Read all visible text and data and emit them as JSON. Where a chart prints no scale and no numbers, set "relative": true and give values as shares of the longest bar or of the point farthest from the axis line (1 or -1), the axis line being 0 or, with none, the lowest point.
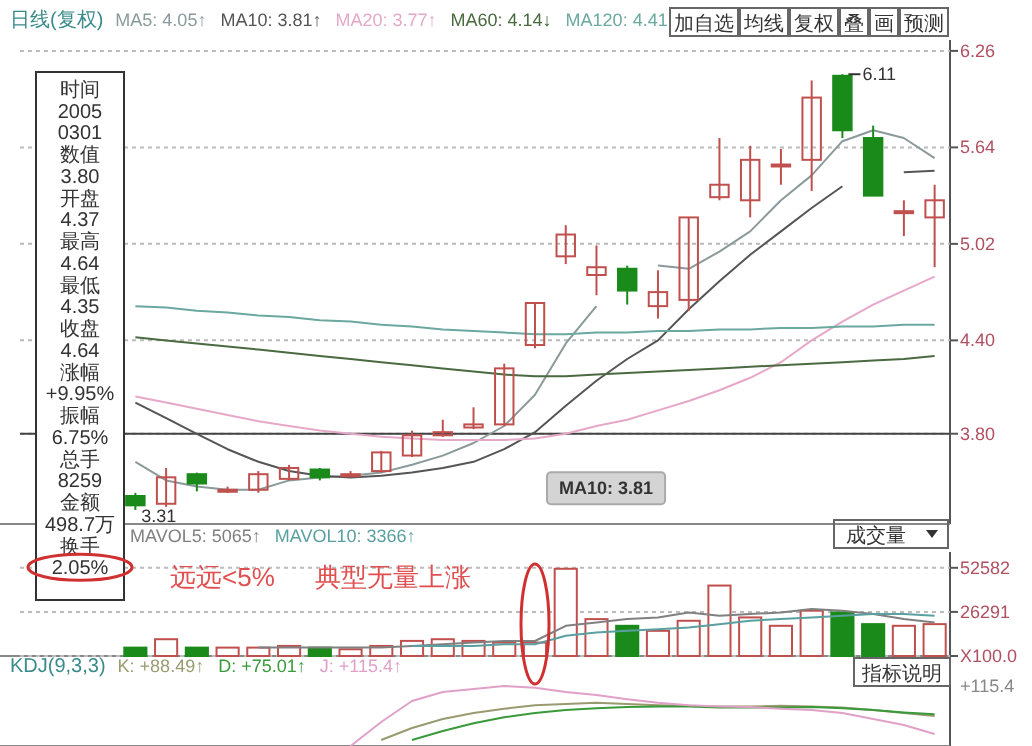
{
  "chart_data": [
    {
      "type": "candlestick",
      "title": "日线(复权)",
      "legend": "top left",
      "grid": "y",
      "categories": [
        null,
        null,
        null,
        null,
        null,
        null,
        null,
        null,
        null,
        null,
        null,
        null,
        null,
        null,
        null,
        null,
        null,
        null,
        null,
        null,
        null,
        null,
        null,
        null,
        null,
        null,
        null
      ],
      "ohlc": [
        [
          3.4,
          3.42,
          3.31,
          3.34
        ],
        [
          3.35,
          3.58,
          3.33,
          3.52
        ],
        [
          3.54,
          3.55,
          3.43,
          3.48
        ],
        [
          3.44,
          3.46,
          3.42,
          3.44
        ],
        [
          3.44,
          3.56,
          3.42,
          3.54
        ],
        [
          3.51,
          3.6,
          3.5,
          3.58
        ],
        [
          3.57,
          3.58,
          3.5,
          3.52
        ],
        [
          3.54,
          3.56,
          3.52,
          3.54
        ],
        [
          3.56,
          3.69,
          3.55,
          3.68
        ],
        [
          3.66,
          3.82,
          3.65,
          3.79
        ],
        [
          3.79,
          3.89,
          3.78,
          3.81
        ],
        [
          3.84,
          3.97,
          3.83,
          3.86
        ],
        [
          3.86,
          4.25,
          3.85,
          4.22
        ],
        [
          4.37,
          4.64,
          4.35,
          4.64
        ],
        [
          4.94,
          5.14,
          4.89,
          5.08
        ],
        [
          4.82,
          5.01,
          4.69,
          4.87
        ],
        [
          4.86,
          4.88,
          4.63,
          4.72
        ],
        [
          4.62,
          4.85,
          4.54,
          4.71
        ],
        [
          4.66,
          5.19,
          4.59,
          5.19
        ],
        [
          5.32,
          5.7,
          5.3,
          5.4
        ],
        [
          5.3,
          5.65,
          5.19,
          5.56
        ],
        [
          5.53,
          5.63,
          5.4,
          5.53
        ],
        [
          5.56,
          6.07,
          5.36,
          5.96
        ],
        [
          6.1,
          6.11,
          5.7,
          5.75
        ],
        [
          5.7,
          5.78,
          5.33,
          5.33
        ],
        [
          5.23,
          5.3,
          5.07,
          5.23
        ],
        [
          5.19,
          5.4,
          4.87,
          5.3
        ]
      ],
      "colors": [
        "#1a8a1a",
        "#c0504d",
        "#1a8a1a",
        "#c0504d",
        "#c0504d",
        "#c0504d",
        "#1a8a1a",
        "#c0504d",
        "#c0504d",
        "#c0504d",
        "#c0504d",
        "#c0504d",
        "#c0504d",
        "#c0504d",
        "#c0504d",
        "#c0504d",
        "#1a8a1a",
        "#c0504d",
        "#c0504d",
        "#c0504d",
        "#c0504d",
        "#c0504d",
        "#c0504d",
        "#1a8a1a",
        "#1a8a1a",
        "#c0504d",
        "#c0504d"
      ],
      "series": [
        {
          "type": "line",
          "name": "MA5: 4.05↑",
          "color": "#8a9a9a",
          "values": [
            3.62,
            3.5,
            3.46,
            3.44,
            3.44,
            3.5,
            3.52,
            3.53,
            3.55,
            3.6,
            3.66,
            3.74,
            3.85,
            4.05,
            4.38,
            4.62,
            null,
            4.88,
            4.86,
            4.97,
            5.1,
            5.3,
            5.46,
            5.68,
            5.75,
            5.7,
            5.57
          ]
        },
        {
          "type": "line",
          "name": "MA10: 3.81↑",
          "color": "#555555",
          "values": [
            4.0,
            3.9,
            3.8,
            3.7,
            3.62,
            3.56,
            3.53,
            3.52,
            3.53,
            3.55,
            3.58,
            3.62,
            3.7,
            3.81,
            3.98,
            4.14,
            4.28,
            4.4,
            4.6,
            4.78,
            4.95,
            5.1,
            5.25,
            5.39,
            null,
            5.48,
            5.49
          ]
        },
        {
          "type": "line",
          "name": "MA20: 3.77↑",
          "color": "#e6a8c8",
          "values": [
            4.04,
            4.0,
            3.96,
            3.92,
            3.88,
            3.85,
            3.82,
            3.8,
            3.78,
            3.77,
            3.76,
            3.76,
            3.76,
            3.77,
            3.8,
            3.85,
            3.89,
            3.95,
            4.01,
            4.08,
            4.16,
            4.26,
            4.4,
            4.52,
            4.63,
            4.72,
            4.81
          ]
        },
        {
          "type": "line",
          "name": "MA60: 4.14↓",
          "color": "#4a6a40",
          "values": [
            4.42,
            4.4,
            4.38,
            4.36,
            4.34,
            4.32,
            4.3,
            4.28,
            4.26,
            4.24,
            4.22,
            4.2,
            4.18,
            4.17,
            4.17,
            4.18,
            4.19,
            4.2,
            4.21,
            4.22,
            4.23,
            4.24,
            4.25,
            4.26,
            4.27,
            4.28,
            4.3
          ]
        },
        {
          "type": "line",
          "name": "MA120: 4.41",
          "color": "#6aa8a0",
          "values": [
            4.62,
            4.61,
            4.59,
            4.58,
            4.56,
            4.55,
            4.53,
            4.52,
            4.5,
            4.49,
            4.47,
            4.46,
            4.45,
            4.44,
            4.44,
            4.45,
            4.45,
            4.46,
            4.46,
            4.47,
            4.47,
            4.48,
            4.48,
            4.49,
            4.49,
            4.5,
            4.5
          ]
        }
      ],
      "ylim": [
        3.22,
        6.33
      ],
      "yticks": [
        {
          "value": 3.8,
          "label": "3.80"
        },
        {
          "value": 4.4,
          "label": "4.40"
        },
        5.02,
        5.64,
        6.26
      ],
      "ref_lines": [
        {
          "axis": "y",
          "value": 3.8
        }
      ],
      "annotations": [
        "加自选",
        "均线",
        "复权",
        "叠",
        "画",
        "预测",
        {
          "text": "3.31",
          "y": 3.31
        },
        {
          "text": "MA10: 3.81",
          "y": 3.81
        },
        "6.11"
      ]
    },
    {
      "type": "bar",
      "legend": "top left",
      "grid": "y",
      "categories": [
        null,
        null,
        null,
        null,
        null,
        null,
        null,
        null,
        null,
        null,
        null,
        null,
        null,
        null,
        null,
        null,
        null,
        null,
        null,
        null,
        null,
        null,
        null,
        null,
        null,
        null,
        null
      ],
      "values": [
        5000,
        10000,
        5000,
        5000,
        5000,
        6000,
        5000,
        4000,
        6000,
        9000,
        10000,
        9000,
        8000,
        8000,
        52000,
        22000,
        18000,
        15000,
        21000,
        42000,
        23000,
        18000,
        27000,
        26000,
        19000,
        18000,
        19000
      ],
      "colors": [
        "#1a8a1a",
        "#c0504d",
        "#1a8a1a",
        "#c0504d",
        "#c0504d",
        "#c0504d",
        "#1a8a1a",
        "#c0504d",
        "#c0504d",
        "#c0504d",
        "#c0504d",
        "#c0504d",
        "#c0504d",
        "#c0504d",
        "#c0504d",
        "#c0504d",
        "#1a8a1a",
        "#c0504d",
        "#c0504d",
        "#c0504d",
        "#c0504d",
        "#c0504d",
        "#c0504d",
        "#1a8a1a",
        "#1a8a1a",
        "#c0504d",
        "#c0504d"
      ],
      "series": [
        {
          "type": "line",
          "name": "MAVOL5: 5065↑",
          "color": "#808080",
          "values": [
            null,
            null,
            null,
            null,
            5000,
            5000,
            5000,
            5000,
            5000,
            6000,
            7000,
            8000,
            9000,
            9000,
            18000,
            20000,
            22000,
            23000,
            26000,
            24000,
            25000,
            26000,
            28000,
            27000,
            25000,
            22000,
            20000
          ]
        },
        {
          "type": "line",
          "name": "MAVOL10: 3366↑",
          "color": "#5aa0a0",
          "values": [
            null,
            null,
            null,
            null,
            null,
            null,
            null,
            null,
            null,
            6000,
            6000,
            6000,
            7000,
            7000,
            12000,
            14000,
            15000,
            16000,
            17000,
            19000,
            21000,
            22000,
            23000,
            24000,
            25000,
            25000,
            24000
          ]
        }
      ],
      "ylim": [
        0,
        62000
      ],
      "yticks": [
        {
          "value": 0,
          "label": "X100.0"
        },
        26291,
        52582
      ],
      "annotations": [
        "成交量",
        "远远<5%",
        "典型无量上涨"
      ]
    },
    {
      "type": "line",
      "title": "KDJ(9,3,3)",
      "legend": "top left",
      "relative": true,
      "categories": [
        null,
        null,
        null,
        null,
        null,
        null,
        null,
        null,
        null,
        null,
        null,
        null,
        null,
        null,
        null,
        null,
        null,
        null,
        null,
        null,
        null,
        null,
        null,
        null,
        null,
        null,
        null
      ],
      "series": [
        {
          "name": "K: +88.49↑",
          "color": "#9a9a70",
          "values": [
            null,
            null,
            null,
            null,
            null,
            null,
            null,
            null,
            0.1,
            0.3,
            0.45,
            0.55,
            0.62,
            0.68,
            0.7,
            0.72,
            0.7,
            0.68,
            0.67,
            0.66,
            0.66,
            0.67,
            0.66,
            0.64,
            0.6,
            0.55,
            0.5
          ]
        },
        {
          "name": "D: +75.01↑",
          "color": "#3a9a3a",
          "values": [
            null,
            null,
            null,
            null,
            null,
            null,
            null,
            null,
            null,
            0.1,
            0.25,
            0.38,
            0.48,
            0.55,
            0.6,
            0.63,
            0.65,
            0.66,
            0.66,
            0.64,
            0.64,
            0.64,
            0.65,
            0.63,
            0.6,
            0.56,
            0.53
          ]
        },
        {
          "name": "J: +115.4↑",
          "color": "#e0a0c8",
          "values": [
            null,
            null,
            null,
            null,
            null,
            null,
            null,
            0,
            0.4,
            0.75,
            0.9,
            0.95,
            1.0,
            0.97,
            0.9,
            0.85,
            0.78,
            0.72,
            0.68,
            0.66,
            0.65,
            0.62,
            0.6,
            0.55,
            0.45,
            0.35,
            0.2
          ]
        }
      ],
      "annotations": [
        "指标说明",
        "+115.4"
      ]
    },
    {
      "type": "other",
      "annotations": [
        "时间",
        "2005",
        "0301",
        "数值",
        "3.80",
        "开盘",
        "4.37",
        "最高",
        "4.64",
        "最低",
        "4.35",
        "收盘",
        "4.64",
        "涨幅",
        "+9.95%",
        "振幅",
        "6.75%",
        "总手",
        "8259",
        "金额",
        "498.7万",
        "换手",
        "2.05%"
      ]
    }
  ]
}
